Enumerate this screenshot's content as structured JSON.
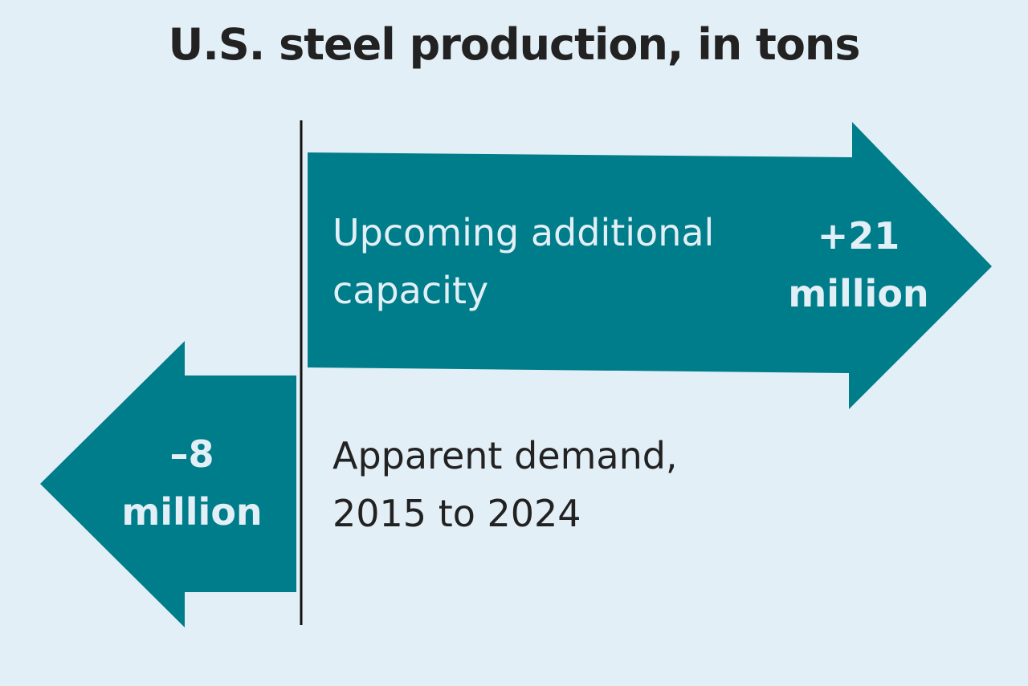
{
  "chart_data": {
    "type": "bar",
    "title": "U.S. steel production, in tons",
    "unit": "tons",
    "categories": [
      [
        "Upcoming additional",
        "capacity"
      ],
      [
        "Apparent demand,",
        "2015 to 2024"
      ]
    ],
    "values": [
      21000000,
      -8000000
    ],
    "value_labels": [
      [
        "+21",
        "million"
      ],
      [
        "–8",
        "million"
      ]
    ],
    "colors": {
      "arrow": "#007d8a",
      "background": "#e3eff6",
      "axis": "#111111",
      "text_dark": "#222222",
      "text_light": "#e3eff6"
    },
    "grid": false,
    "legend": "none"
  }
}
